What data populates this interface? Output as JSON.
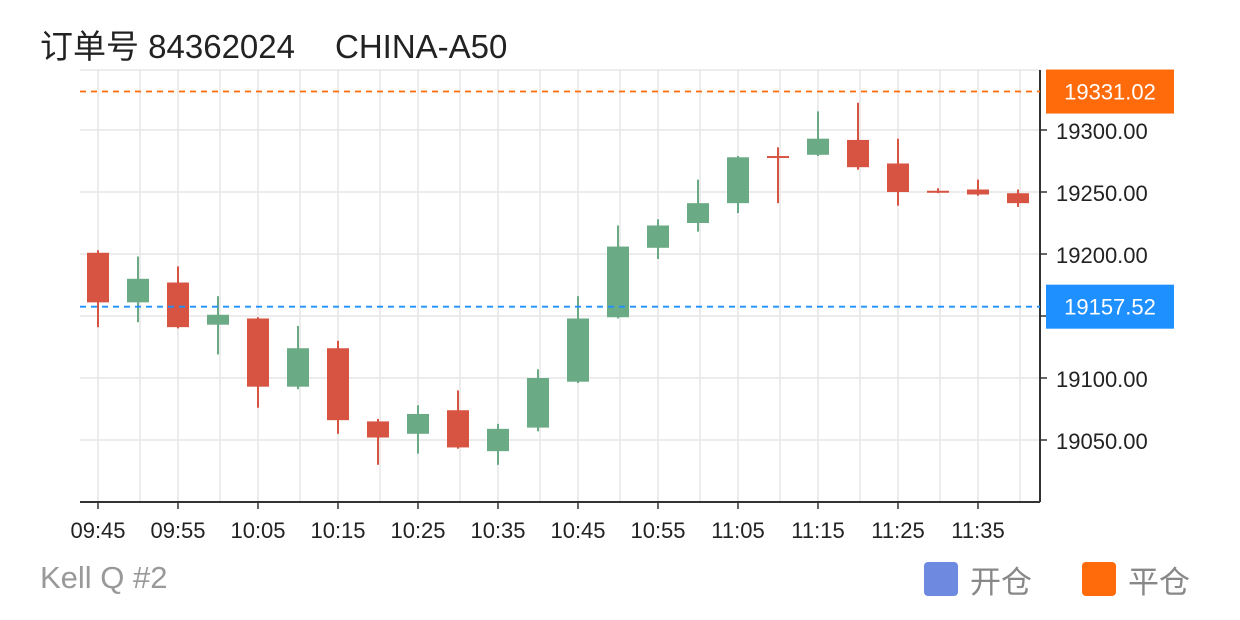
{
  "header": {
    "order_label": "订单号 84362024",
    "symbol": "CHINA-A50"
  },
  "watermark": "Kell Q #2",
  "legend": [
    {
      "label": "开仓",
      "color": "#6d8ae0"
    },
    {
      "label": "平仓",
      "color": "#ff6a0a"
    }
  ],
  "colors": {
    "up": "#6aaa85",
    "down": "#d85442",
    "grid": "#e6e6e6",
    "axis": "#333333",
    "open_line": "#1e90ff",
    "close_line": "#ff6a0a"
  },
  "chart_data": {
    "type": "candlestick",
    "x_tick_labels": [
      "09:45",
      "09:55",
      "10:05",
      "10:15",
      "10:25",
      "10:35",
      "10:45",
      "10:55",
      "11:05",
      "11:15",
      "11:25",
      "11:35"
    ],
    "y_tick_labels": [
      "19050.00",
      "19100.00",
      "19150.00",
      "19200.00",
      "19250.00",
      "19300.00"
    ],
    "y_ticks": [
      19050,
      19100,
      19150,
      19200,
      19250,
      19300
    ],
    "ylim": [
      19000,
      19350
    ],
    "grid": true,
    "reference_lines": [
      {
        "label": "19331.02",
        "value": 19331.02,
        "kind": "close"
      },
      {
        "label": "19157.52",
        "value": 19157.52,
        "kind": "open"
      }
    ],
    "candles": [
      {
        "time": "09:45",
        "open": 19201,
        "high": 19203,
        "low": 19141,
        "close": 19161
      },
      {
        "time": "09:50",
        "open": 19161,
        "high": 19198,
        "low": 19145,
        "close": 19180
      },
      {
        "time": "09:55",
        "open": 19177,
        "high": 19190,
        "low": 19140,
        "close": 19141
      },
      {
        "time": "10:00",
        "open": 19143,
        "high": 19166,
        "low": 19119,
        "close": 19151
      },
      {
        "time": "10:05",
        "open": 19148,
        "high": 19149,
        "low": 19076,
        "close": 19093
      },
      {
        "time": "10:10",
        "open": 19093,
        "high": 19142,
        "low": 19091,
        "close": 19124
      },
      {
        "time": "10:15",
        "open": 19124,
        "high": 19130,
        "low": 19055,
        "close": 19066
      },
      {
        "time": "10:20",
        "open": 19065,
        "high": 19067,
        "low": 19030,
        "close": 19052
      },
      {
        "time": "10:25",
        "open": 19055,
        "high": 19078,
        "low": 19039,
        "close": 19071
      },
      {
        "time": "10:30",
        "open": 19074,
        "high": 19090,
        "low": 19043,
        "close": 19044
      },
      {
        "time": "10:35",
        "open": 19041,
        "high": 19063,
        "low": 19030,
        "close": 19059
      },
      {
        "time": "10:40",
        "open": 19060,
        "high": 19107,
        "low": 19057,
        "close": 19100
      },
      {
        "time": "10:45",
        "open": 19097,
        "high": 19166,
        "low": 19096,
        "close": 19148
      },
      {
        "time": "10:50",
        "open": 19149,
        "high": 19223,
        "low": 19148,
        "close": 19206
      },
      {
        "time": "10:55",
        "open": 19205,
        "high": 19228,
        "low": 19196,
        "close": 19223
      },
      {
        "time": "11:00",
        "open": 19225,
        "high": 19260,
        "low": 19218,
        "close": 19241
      },
      {
        "time": "11:05",
        "open": 19241,
        "high": 19279,
        "low": 19233,
        "close": 19278
      },
      {
        "time": "11:10",
        "open": 19279,
        "high": 19286,
        "low": 19241,
        "close": 19278
      },
      {
        "time": "11:15",
        "open": 19280,
        "high": 19315,
        "low": 19279,
        "close": 19293
      },
      {
        "time": "11:20",
        "open": 19292,
        "high": 19322,
        "low": 19268,
        "close": 19270
      },
      {
        "time": "11:25",
        "open": 19273,
        "high": 19293,
        "low": 19239,
        "close": 19250
      },
      {
        "time": "11:30",
        "open": 19251,
        "high": 19253,
        "low": 19249,
        "close": 19250
      },
      {
        "time": "11:35",
        "open": 19252,
        "high": 19260,
        "low": 19247,
        "close": 19248
      },
      {
        "time": "11:40",
        "open": 19249,
        "high": 19252,
        "low": 19238,
        "close": 19241
      }
    ]
  }
}
